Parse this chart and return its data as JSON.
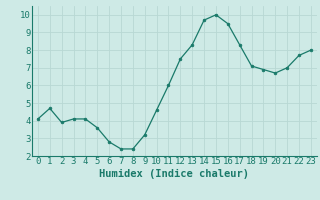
{
  "x": [
    0,
    1,
    2,
    3,
    4,
    5,
    6,
    7,
    8,
    9,
    10,
    11,
    12,
    13,
    14,
    15,
    16,
    17,
    18,
    19,
    20,
    21,
    22,
    23
  ],
  "y": [
    4.1,
    4.7,
    3.9,
    4.1,
    4.1,
    3.6,
    2.8,
    2.4,
    2.4,
    3.2,
    4.6,
    6.0,
    7.5,
    8.3,
    9.7,
    10.0,
    9.5,
    8.3,
    7.1,
    6.9,
    6.7,
    7.0,
    7.7,
    8.0
  ],
  "xlabel": "Humidex (Indice chaleur)",
  "xlim": [
    -0.5,
    23.5
  ],
  "ylim": [
    2,
    10.5
  ],
  "yticks": [
    2,
    3,
    4,
    5,
    6,
    7,
    8,
    9,
    10
  ],
  "xticks": [
    0,
    1,
    2,
    3,
    4,
    5,
    6,
    7,
    8,
    9,
    10,
    11,
    12,
    13,
    14,
    15,
    16,
    17,
    18,
    19,
    20,
    21,
    22,
    23
  ],
  "line_color": "#1a7a6a",
  "marker_color": "#1a7a6a",
  "bg_color": "#ceeae6",
  "grid_color": "#b8d8d4",
  "label_color": "#1a7a6a",
  "font_size": 6.5,
  "xlabel_fontsize": 7.5
}
